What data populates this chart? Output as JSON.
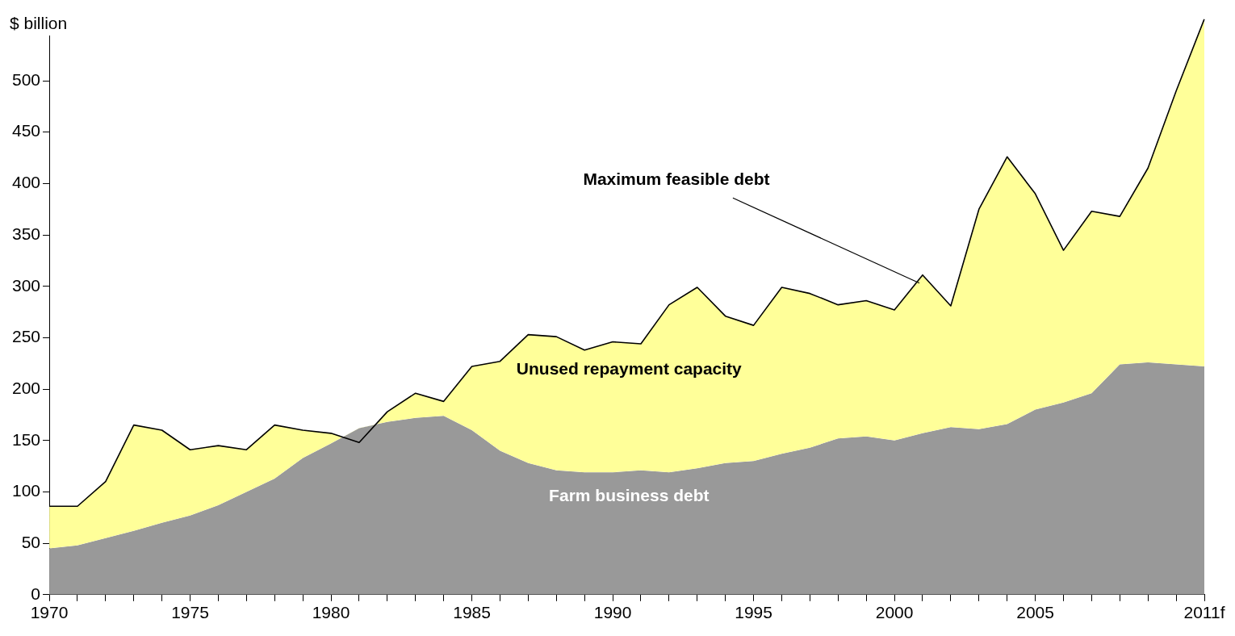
{
  "chart_data": {
    "type": "area",
    "ylabel": "$ billion",
    "categories": [
      "1970",
      null,
      null,
      null,
      null,
      "1975",
      null,
      null,
      null,
      null,
      "1980",
      null,
      null,
      null,
      null,
      "1985",
      null,
      null,
      null,
      null,
      "1990",
      null,
      null,
      null,
      null,
      "1995",
      null,
      null,
      null,
      null,
      "2000",
      null,
      null,
      null,
      null,
      "2005",
      null,
      null,
      null,
      null,
      null,
      "2011f"
    ],
    "series": [
      {
        "name": "Farm business debt",
        "color": "#999999",
        "values": [
          45,
          48,
          55,
          62,
          70,
          77,
          87,
          100,
          113,
          133,
          147,
          162,
          168,
          172,
          174,
          160,
          140,
          128,
          121,
          119,
          119,
          121,
          119,
          123,
          128,
          130,
          137,
          143,
          152,
          154,
          150,
          157,
          163,
          161,
          166,
          180,
          187,
          196,
          224,
          226,
          224,
          222
        ]
      },
      {
        "name": "Maximum feasible debt",
        "color": "#ffff99",
        "values": [
          86,
          86,
          110,
          165,
          160,
          141,
          145,
          141,
          165,
          160,
          157,
          148,
          178,
          196,
          188,
          222,
          227,
          253,
          251,
          238,
          246,
          244,
          282,
          299,
          271,
          262,
          299,
          293,
          282,
          286,
          277,
          311,
          281,
          375,
          426,
          390,
          335,
          373,
          368,
          415,
          490,
          560
        ]
      }
    ],
    "annotations": [
      "Unused repayment capacity"
    ],
    "ylim": [
      0,
      560
    ],
    "yticks": [
      0,
      50,
      100,
      150,
      200,
      250,
      300,
      350,
      400,
      450,
      500
    ],
    "grid": false,
    "legend": false
  }
}
